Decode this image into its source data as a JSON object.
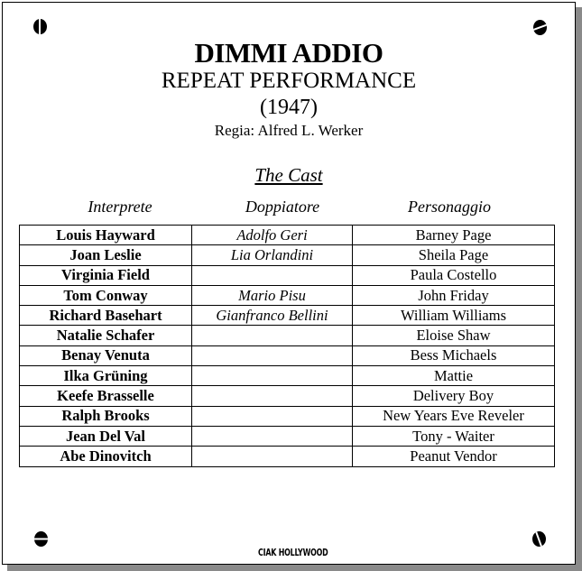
{
  "title": "DIMMI ADDIO",
  "original_title": "REPEAT PERFORMANCE",
  "year": "(1947)",
  "director": "Regia: Alfred L. Werker",
  "cast_heading": "The Cast",
  "columns": [
    "Interprete",
    "Doppiatore",
    "Personaggio"
  ],
  "rows": [
    {
      "actor": "Louis Hayward",
      "dubber": "Adolfo Geri",
      "character": "Barney Page"
    },
    {
      "actor": "Joan Leslie",
      "dubber": "Lia Orlandini",
      "character": "Sheila Page"
    },
    {
      "actor": "Virginia Field",
      "dubber": "",
      "character": "Paula Costello"
    },
    {
      "actor": "Tom Conway",
      "dubber": "Mario Pisu",
      "character": "John Friday"
    },
    {
      "actor": "Richard Basehart",
      "dubber": "Gianfranco Bellini",
      "character": "William Williams"
    },
    {
      "actor": "Natalie Schafer",
      "dubber": "",
      "character": "Eloise Shaw"
    },
    {
      "actor": "Benay Venuta",
      "dubber": "",
      "character": "Bess Michaels"
    },
    {
      "actor": "Ilka Grüning",
      "dubber": "",
      "character": "Mattie"
    },
    {
      "actor": "Keefe Brasselle",
      "dubber": "",
      "character": "Delivery Boy"
    },
    {
      "actor": "Ralph Brooks",
      "dubber": "",
      "character": "New Years Eve Reveler"
    },
    {
      "actor": "Jean Del Val",
      "dubber": "",
      "character": "Tony - Waiter"
    },
    {
      "actor": "Abe Dinovitch",
      "dubber": "",
      "character": "Peanut Vendor"
    }
  ],
  "logo": "CIAK HOLLYWOOD"
}
